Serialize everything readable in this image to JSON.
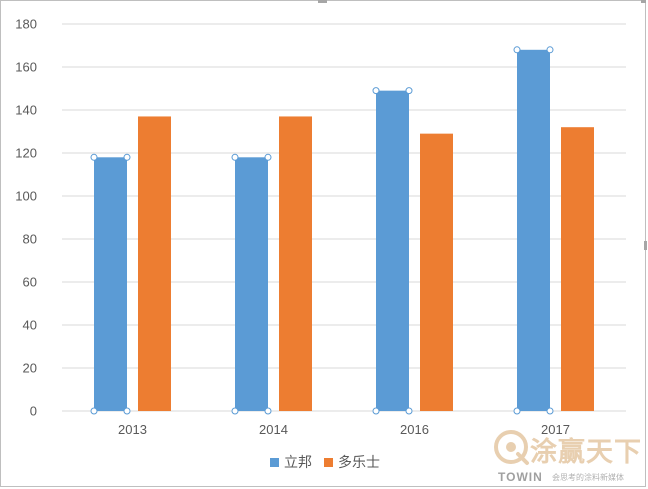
{
  "chart_data": {
    "type": "bar",
    "categories": [
      "2013",
      "2014",
      "2016",
      "2017"
    ],
    "series": [
      {
        "name": "立邦",
        "color": "#5b9bd5",
        "values": [
          118,
          118,
          149,
          168
        ],
        "selected": true
      },
      {
        "name": "多乐士",
        "color": "#ed7d31",
        "values": [
          137,
          137,
          129,
          132
        ]
      }
    ],
    "ylim": [
      0,
      180
    ],
    "yticks": [
      0,
      20,
      40,
      60,
      80,
      100,
      120,
      140,
      160,
      180
    ],
    "grid": true,
    "legend": "bottom",
    "title": "",
    "xlabel": "",
    "ylabel": ""
  },
  "watermark": {
    "title": "涂赢天下",
    "brand": "TOWIN",
    "slogan": "会思考的涂料新媒体"
  }
}
